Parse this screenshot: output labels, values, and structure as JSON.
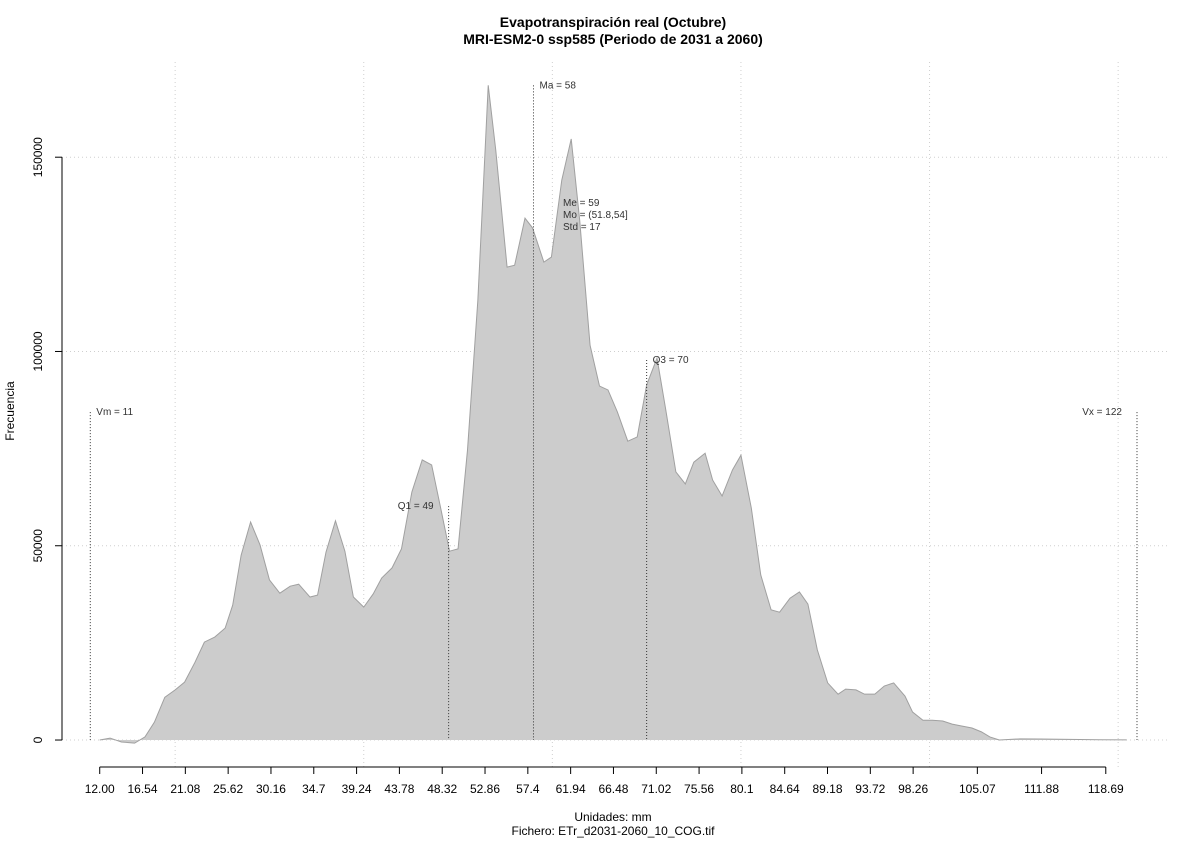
{
  "chart_data": {
    "type": "area",
    "title": "Evapotranspiración real (Octubre)",
    "subtitle": "MRI-ESM2-0 ssp585 (Periodo de 2031 a 2060)",
    "x_label": "Unidades: mm",
    "x_label_2": "Fichero: ETr_d2031-2060_10_COG.tif",
    "y_label": "Frecuencia",
    "color": "#cccccc",
    "line_color": "#a0a0a0",
    "grid": true,
    "xlim": [
      8,
      125.5
    ],
    "ylim": [
      -7200,
      174500
    ],
    "xticks": [
      {
        "value": 12,
        "label": "12.00"
      },
      16.54,
      21.08,
      25.62,
      30.16,
      34.7,
      39.24,
      43.78,
      48.32,
      52.86,
      57.4,
      61.94,
      66.48,
      71.02,
      75.56,
      80.1,
      84.64,
      89.18,
      93.72,
      98.26,
      105.07,
      111.88,
      118.69
    ],
    "xgrid": [
      20,
      40,
      60,
      80,
      100,
      120
    ],
    "yticks": [
      0,
      50000,
      100000,
      150000
    ],
    "x": [
      12,
      13.1,
      14.3,
      15.7,
      16.8,
      17.8,
      18.9,
      20,
      21,
      22.1,
      23.1,
      24.2,
      25.3,
      26.1,
      27,
      28,
      29,
      30,
      31.1,
      32.2,
      33.1,
      34.3,
      35.1,
      36,
      37,
      38,
      38.9,
      40,
      41,
      41.9,
      43,
      44,
      45.1,
      46.2,
      47.2,
      48.2,
      49.1,
      50,
      51,
      52.1,
      53.2,
      54,
      55.2,
      56,
      57.1,
      57.9,
      59.1,
      59.9,
      61,
      62,
      62.9,
      64,
      65,
      65.9,
      66.9,
      68,
      69,
      70,
      71.1,
      72,
      73.1,
      74.1,
      75,
      76.2,
      77,
      78,
      79.1,
      80,
      81.1,
      82.1,
      83.2,
      84.1,
      85.2,
      86.2,
      87.1,
      88.1,
      89.2,
      90.3,
      91.1,
      92.2,
      93.1,
      94.2,
      95.2,
      96.2,
      97.4,
      98.2,
      99.3,
      100.3,
      101.4,
      102.4,
      103.4,
      104.5,
      105.5,
      106.4,
      107.4,
      109.6,
      111.7,
      113.8,
      115.9,
      118,
      120.9
    ],
    "values": [
      0,
      500,
      -500,
      -800,
      800,
      4600,
      11000,
      12900,
      14900,
      20000,
      25200,
      26500,
      28800,
      34700,
      47600,
      56100,
      50200,
      41200,
      37800,
      39600,
      40100,
      36800,
      37300,
      48400,
      56400,
      48600,
      36800,
      34200,
      37600,
      41700,
      44300,
      49200,
      63800,
      72100,
      70800,
      59200,
      48600,
      49200,
      74600,
      113200,
      168500,
      151800,
      121700,
      122200,
      134300,
      131800,
      123000,
      124300,
      144100,
      154700,
      133800,
      101600,
      91100,
      90100,
      84400,
      76900,
      78000,
      91400,
      98300,
      85400,
      69000,
      65900,
      71500,
      73800,
      66900,
      62800,
      69500,
      73300,
      59700,
      42500,
      33500,
      32900,
      36500,
      38100,
      35000,
      23200,
      14700,
      11800,
      13100,
      12900,
      11800,
      11800,
      13900,
      14700,
      11300,
      7200,
      5100,
      5100,
      4900,
      4100,
      3600,
      3100,
      2100,
      800,
      0,
      300,
      250,
      200,
      150,
      80,
      30
    ],
    "markers": [
      {
        "label": "Vm = 11",
        "x": 11,
        "y": 84400,
        "side": "right"
      },
      {
        "label": "Q1 = 49",
        "x": 49,
        "y": 60200,
        "side": "left"
      },
      {
        "label": "Ma = 58",
        "x": 58,
        "y": 168500,
        "side": "right"
      },
      {
        "label": "Q3 = 70",
        "x": 70,
        "y": 97800,
        "side": "right"
      },
      {
        "label": "Vx = 122",
        "x": 122,
        "y": 84400,
        "side": "left"
      }
    ],
    "stats": [
      "Me = 59",
      "Mo = (51.8,54]",
      "Std = 17"
    ]
  }
}
